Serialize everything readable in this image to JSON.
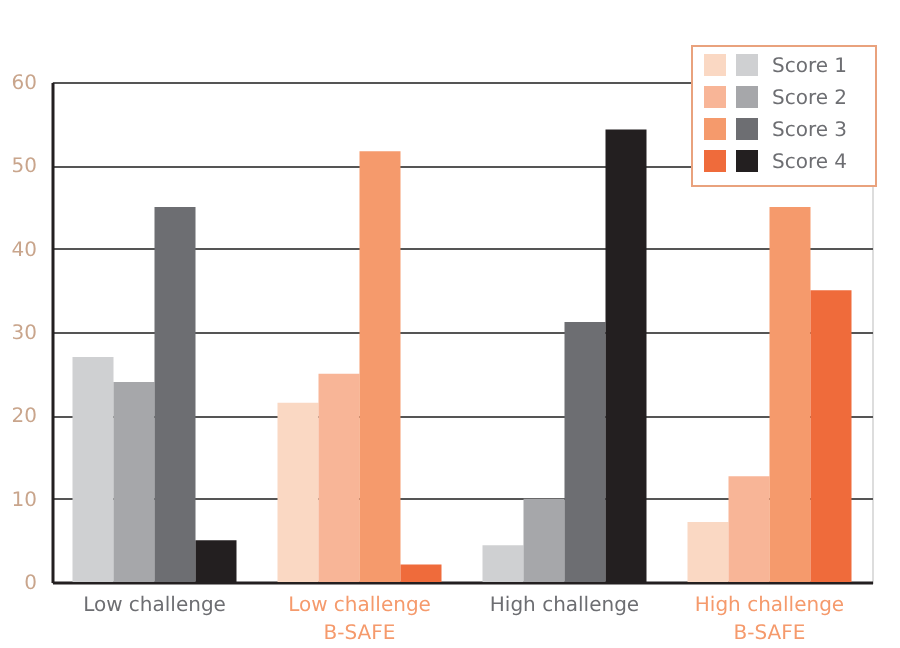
{
  "chart_data": {
    "type": "bar",
    "categories": [
      "Low challenge",
      "Low challenge\nB-SAFE",
      "High challenge",
      "High challenge\nB-SAFE"
    ],
    "series": [
      {
        "name": "Score 1",
        "colors": [
          "#cfd0d2",
          "#fad8c3",
          "#cfd0d2",
          "#fad8c3"
        ],
        "values": [
          27,
          21.5,
          4.4,
          7.2
        ]
      },
      {
        "name": "Score 2",
        "colors": [
          "#a6a7aa",
          "#f8b597",
          "#a6a7aa",
          "#f8b597"
        ],
        "values": [
          24,
          25,
          10,
          12.7
        ]
      },
      {
        "name": "Score 3",
        "colors": [
          "#6d6e72",
          "#f59a6c",
          "#6d6e72",
          "#f59a6c"
        ],
        "values": [
          45,
          51.7,
          31.2,
          45
        ]
      },
      {
        "name": "Score 4",
        "colors": [
          "#231f20",
          "#ef6b3b",
          "#231f20",
          "#ef6b3b"
        ],
        "values": [
          5,
          2.1,
          54.3,
          35
        ]
      }
    ],
    "ylim": [
      0,
      60
    ],
    "yticks": [
      0,
      10,
      20,
      30,
      40,
      50,
      60
    ],
    "grid": "y",
    "legend": "top right"
  }
}
